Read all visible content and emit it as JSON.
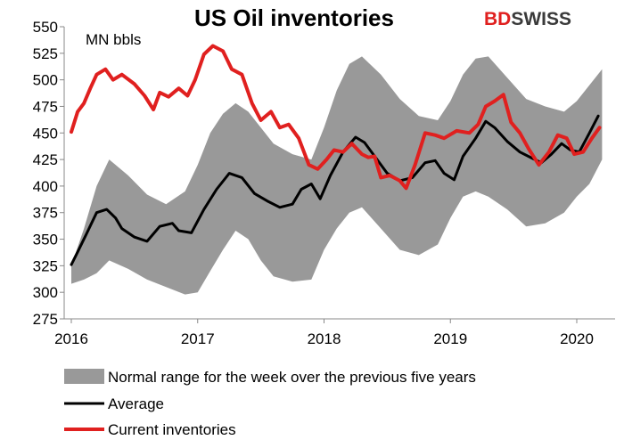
{
  "brand": {
    "logo_part1": "BD",
    "logo_part2": "SWISS",
    "accent": "#e0201f"
  },
  "chart_data": {
    "type": "line",
    "title": "US Oil inventories",
    "unit_label": "MN bbls",
    "xlabel": "",
    "ylabel": "",
    "ylim": [
      275,
      550
    ],
    "yticks": [
      275,
      300,
      325,
      350,
      375,
      400,
      425,
      450,
      475,
      500,
      525,
      550
    ],
    "xlim": [
      2016.0,
      2020.2
    ],
    "xticks": [
      2016,
      2017,
      2018,
      2019,
      2020
    ],
    "xtick_labels": [
      "2016",
      "2017",
      "2018",
      "2019",
      "2020"
    ],
    "grid": false,
    "legend_position": "bottom",
    "band": {
      "name": "Normal range for the week over the previous five years",
      "color": "#999999",
      "x": [
        2016.0,
        2016.1,
        2016.2,
        2016.3,
        2016.45,
        2016.6,
        2016.75,
        2016.9,
        2017.0,
        2017.1,
        2017.2,
        2017.3,
        2017.4,
        2017.5,
        2017.6,
        2017.75,
        2017.9,
        2018.0,
        2018.1,
        2018.2,
        2018.3,
        2018.45,
        2018.6,
        2018.75,
        2018.9,
        2019.0,
        2019.1,
        2019.2,
        2019.3,
        2019.45,
        2019.6,
        2019.75,
        2019.9,
        2020.0,
        2020.1,
        2020.2
      ],
      "upper": [
        325,
        360,
        400,
        425,
        410,
        392,
        383,
        395,
        420,
        450,
        468,
        478,
        470,
        455,
        440,
        430,
        425,
        455,
        490,
        515,
        522,
        505,
        482,
        466,
        462,
        480,
        505,
        520,
        522,
        502,
        482,
        475,
        470,
        480,
        495,
        510
      ],
      "lower": [
        308,
        312,
        318,
        330,
        322,
        312,
        305,
        298,
        300,
        320,
        340,
        358,
        350,
        330,
        315,
        310,
        312,
        340,
        360,
        375,
        380,
        360,
        340,
        335,
        345,
        370,
        390,
        395,
        390,
        378,
        362,
        365,
        375,
        390,
        402,
        425
      ]
    },
    "series": [
      {
        "name": "Average",
        "color": "#000000",
        "x": [
          2016.0,
          2016.05,
          2016.12,
          2016.2,
          2016.28,
          2016.35,
          2016.4,
          2016.5,
          2016.6,
          2016.7,
          2016.8,
          2016.85,
          2016.95,
          2017.05,
          2017.15,
          2017.25,
          2017.35,
          2017.45,
          2017.55,
          2017.65,
          2017.75,
          2017.82,
          2017.9,
          2017.97,
          2018.05,
          2018.15,
          2018.25,
          2018.32,
          2018.42,
          2018.5,
          2018.6,
          2018.7,
          2018.8,
          2018.88,
          2018.95,
          2019.03,
          2019.1,
          2019.2,
          2019.28,
          2019.35,
          2019.45,
          2019.55,
          2019.65,
          2019.72,
          2019.8,
          2019.88,
          2019.95,
          2020.02,
          2020.1,
          2020.17
        ],
        "values": [
          326,
          338,
          355,
          375,
          378,
          370,
          360,
          352,
          348,
          362,
          365,
          358,
          356,
          378,
          397,
          412,
          408,
          393,
          386,
          380,
          383,
          397,
          402,
          388,
          410,
          432,
          446,
          441,
          425,
          412,
          405,
          408,
          422,
          424,
          412,
          406,
          428,
          445,
          461,
          455,
          442,
          432,
          426,
          422,
          430,
          440,
          434,
          432,
          450,
          466
        ]
      },
      {
        "name": "Current inventories",
        "color": "#e0201f",
        "x": [
          2016.0,
          2016.05,
          2016.1,
          2016.15,
          2016.2,
          2016.27,
          2016.33,
          2016.4,
          2016.5,
          2016.58,
          2016.65,
          2016.7,
          2016.77,
          2016.85,
          2016.92,
          2016.98,
          2017.05,
          2017.12,
          2017.2,
          2017.27,
          2017.35,
          2017.43,
          2017.5,
          2017.58,
          2017.65,
          2017.72,
          2017.8,
          2017.88,
          2017.95,
          2018.02,
          2018.08,
          2018.15,
          2018.22,
          2018.3,
          2018.35,
          2018.4,
          2018.45,
          2018.52,
          2018.6,
          2018.65,
          2018.72,
          2018.8,
          2018.88,
          2018.95,
          2019.05,
          2019.15,
          2019.22,
          2019.28,
          2019.35,
          2019.42,
          2019.48,
          2019.55,
          2019.62,
          2019.7,
          2019.78,
          2019.85,
          2019.92,
          2019.98,
          2020.05,
          2020.12,
          2020.18
        ],
        "values": [
          451,
          470,
          478,
          492,
          505,
          510,
          500,
          505,
          496,
          485,
          472,
          488,
          484,
          492,
          485,
          500,
          524,
          532,
          527,
          510,
          505,
          478,
          462,
          470,
          455,
          458,
          445,
          420,
          416,
          425,
          434,
          432,
          440,
          430,
          427,
          428,
          408,
          410,
          405,
          398,
          420,
          450,
          448,
          445,
          452,
          450,
          458,
          475,
          480,
          486,
          460,
          450,
          435,
          420,
          432,
          448,
          445,
          430,
          432,
          445,
          455
        ]
      }
    ]
  }
}
